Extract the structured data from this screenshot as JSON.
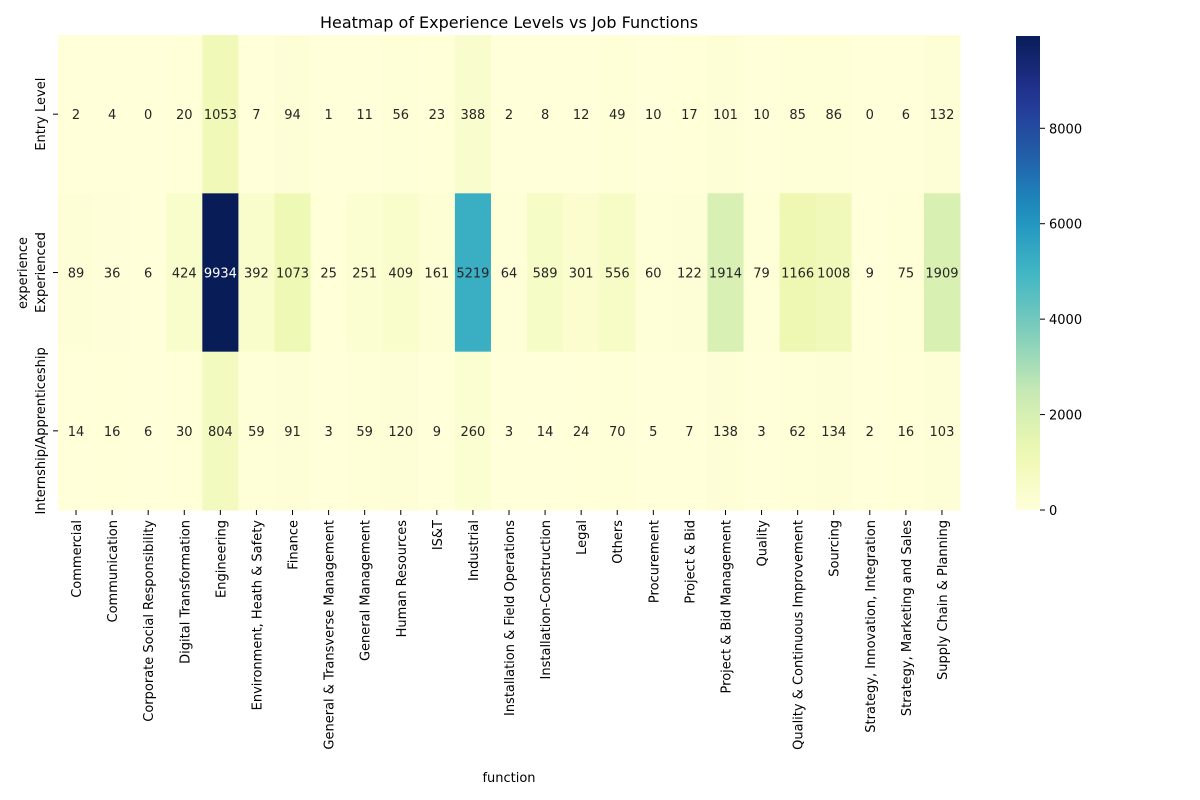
{
  "chart_data": {
    "type": "heatmap",
    "title": "Heatmap of Experience Levels vs Job Functions",
    "xlabel": "function",
    "ylabel": "experience",
    "rows": [
      "Entry Level",
      "Experienced",
      "Internship/Apprenticeship"
    ],
    "columns": [
      "Commercial",
      "Communication",
      "Corporate Social Responsibility",
      "Digital Transformation",
      "Engineering",
      "Environment, Heath & Safety",
      "Finance",
      "General & Transverse Management",
      "General Management",
      "Human Resources",
      "IS&T",
      "Industrial",
      "Installation & Field Operations",
      "Installation-Construction",
      "Legal",
      "Others",
      "Procurement",
      "Project & Bid",
      "Project & Bid Management",
      "Quality",
      "Quality & Continuous Improvement",
      "Sourcing",
      "Strategy, Innovation, Integration",
      "Strategy, Marketing and Sales",
      "Supply Chain & Planning"
    ],
    "values": [
      [
        2,
        4,
        0,
        20,
        1053,
        7,
        94,
        1,
        11,
        56,
        23,
        388,
        2,
        8,
        12,
        49,
        10,
        17,
        101,
        10,
        85,
        86,
        0,
        6,
        132
      ],
      [
        89,
        36,
        6,
        424,
        9934,
        392,
        1073,
        25,
        251,
        409,
        161,
        5219,
        64,
        589,
        301,
        556,
        60,
        122,
        1914,
        79,
        1166,
        1008,
        9,
        75,
        1909
      ],
      [
        14,
        16,
        6,
        30,
        804,
        59,
        91,
        3,
        59,
        120,
        9,
        260,
        3,
        14,
        24,
        70,
        5,
        7,
        138,
        3,
        62,
        134,
        2,
        16,
        103
      ]
    ],
    "colormap": "YlGnBu",
    "colorbar": {
      "min": 0,
      "max": 9934,
      "ticks": [
        0,
        2000,
        4000,
        6000,
        8000
      ]
    }
  }
}
